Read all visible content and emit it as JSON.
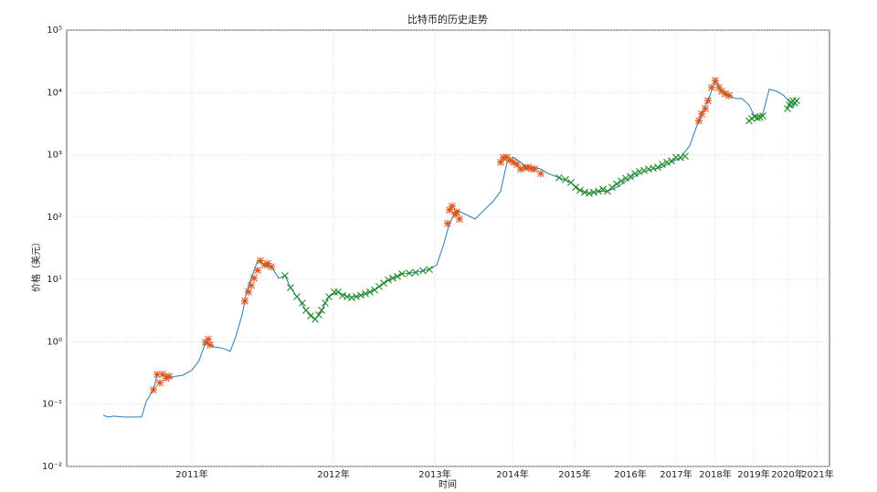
{
  "chart_data": {
    "type": "line",
    "title": "比特币的历史走势",
    "xlabel": "时间",
    "ylabel": "价格（美元）",
    "log_y": true,
    "grid": true,
    "xlim": [
      0,
      835
    ],
    "ylim": [
      0.01,
      100000
    ],
    "xticks": [
      {
        "value": 137,
        "label": "2011年"
      },
      {
        "value": 292,
        "label": "2012年"
      },
      {
        "value": 403,
        "label": "2013年"
      },
      {
        "value": 488,
        "label": "2014年"
      },
      {
        "value": 556,
        "label": "2015年"
      },
      {
        "value": 617,
        "label": "2016年"
      },
      {
        "value": 667,
        "label": "2017年"
      },
      {
        "value": 710,
        "label": "2018年"
      },
      {
        "value": 752,
        "label": "2019年"
      },
      {
        "value": 789,
        "label": "2020年"
      },
      {
        "value": 822,
        "label": "2021年"
      }
    ],
    "yticks": [
      {
        "value": 0.01,
        "label": "10⁻²"
      },
      {
        "value": 0.1,
        "label": "10⁻¹"
      },
      {
        "value": 1,
        "label": "10⁰"
      },
      {
        "value": 10,
        "label": "10¹"
      },
      {
        "value": 100,
        "label": "10²"
      },
      {
        "value": 1000,
        "label": "10³"
      },
      {
        "value": 10000,
        "label": "10⁴"
      },
      {
        "value": 100000,
        "label": "10⁵"
      }
    ],
    "series": [
      {
        "color": "#2a7ab8",
        "marker": "none",
        "x": [
          40,
          45,
          52,
          62,
          82,
          87,
          95,
          99,
          105,
          112,
          119,
          127,
          137,
          145,
          152,
          157,
          162,
          172,
          179,
          185,
          192,
          197,
          202,
          209,
          217,
          224,
          232,
          239,
          245,
          252,
          262,
          272,
          279,
          287,
          297,
          307,
          317,
          327,
          337,
          347,
          357,
          367,
          382,
          397,
          405,
          412,
          419,
          427,
          437,
          447,
          457,
          467,
          475,
          482,
          489,
          497,
          505,
          512,
          519,
          527,
          539,
          552,
          562,
          572,
          582,
          592,
          602,
          612,
          622,
          632,
          642,
          652,
          662,
          672,
          682,
          689,
          695,
          702,
          710,
          717,
          725,
          732,
          739,
          747,
          753,
          762,
          769,
          777,
          785,
          790,
          795,
          799
        ],
        "values": [
          0.066,
          0.062,
          0.064,
          0.062,
          0.062,
          0.11,
          0.17,
          0.3,
          0.3,
          0.26,
          0.28,
          0.29,
          0.35,
          0.5,
          0.98,
          0.89,
          0.83,
          0.78,
          0.7,
          1.2,
          2.7,
          6.3,
          10.5,
          20,
          17,
          16,
          10.5,
          11.5,
          7.4,
          5.3,
          3.2,
          2.3,
          3.2,
          5.3,
          6.3,
          5.3,
          5.3,
          5.9,
          6.8,
          8.7,
          10.5,
          12.3,
          13,
          14.5,
          17,
          34,
          79,
          130,
          110,
          93,
          130,
          180,
          260,
          760,
          910,
          760,
          590,
          630,
          590,
          500,
          430,
          360,
          270,
          240,
          260,
          260,
          300,
          380,
          450,
          540,
          590,
          630,
          760,
          910,
          1400,
          2700,
          4500,
          7400,
          15500,
          10500,
          8900,
          8000,
          8000,
          6300,
          4100,
          4500,
          11200,
          10500,
          8900,
          7400,
          5700,
          7400
        ]
      },
      {
        "color": "#d9541a",
        "marker": "star",
        "x": [
          95,
          99,
          102,
          105,
          109,
          112,
          152,
          155,
          157,
          195,
          199,
          202,
          205,
          209,
          212,
          217,
          220,
          224,
          417,
          419,
          422,
          425,
          427,
          430,
          475,
          478,
          482,
          485,
          489,
          493,
          497,
          502,
          505,
          509,
          512,
          519,
          692,
          695,
          699,
          702,
          706,
          710,
          714,
          717,
          721,
          725
        ],
        "values": [
          0.17,
          0.3,
          0.22,
          0.3,
          0.26,
          0.28,
          0.98,
          1.1,
          0.89,
          4.5,
          6.3,
          8,
          10.5,
          14,
          20,
          17,
          18,
          16,
          79,
          130,
          150,
          110,
          120,
          93,
          760,
          900,
          910,
          820,
          760,
          700,
          590,
          620,
          630,
          600,
          590,
          500,
          3500,
          4500,
          5500,
          7400,
          12000,
          15500,
          12000,
          10500,
          9500,
          8900
        ]
      },
      {
        "color": "#1e8a1e",
        "marker": "cross",
        "x": [
          239,
          245,
          252,
          258,
          262,
          267,
          272,
          276,
          279,
          283,
          287,
          293,
          297,
          302,
          307,
          312,
          317,
          322,
          327,
          332,
          337,
          342,
          347,
          352,
          357,
          362,
          367,
          375,
          382,
          390,
          397,
          539,
          546,
          552,
          557,
          562,
          567,
          572,
          577,
          582,
          587,
          592,
          597,
          602,
          607,
          612,
          617,
          622,
          627,
          632,
          637,
          642,
          647,
          652,
          657,
          662,
          667,
          672,
          677,
          747,
          750,
          753,
          756,
          759,
          762,
          789,
          791,
          793,
          795,
          797,
          799
        ],
        "values": [
          11.5,
          7.4,
          5.3,
          4.2,
          3.2,
          2.6,
          2.3,
          2.7,
          3.2,
          4.2,
          5.3,
          6.3,
          6.3,
          5.5,
          5.3,
          5.1,
          5.3,
          5.6,
          5.9,
          6.3,
          6.8,
          7.7,
          8.7,
          9.8,
          10.5,
          11.2,
          12.3,
          12.6,
          13,
          13.8,
          14.5,
          430,
          400,
          360,
          300,
          270,
          250,
          240,
          250,
          260,
          280,
          260,
          300,
          340,
          380,
          420,
          450,
          500,
          540,
          560,
          590,
          610,
          630,
          700,
          760,
          800,
          910,
          900,
          950,
          3500,
          3800,
          4100,
          3900,
          4000,
          4200,
          5500,
          6300,
          7000,
          7400,
          6800,
          7400
        ]
      }
    ]
  }
}
